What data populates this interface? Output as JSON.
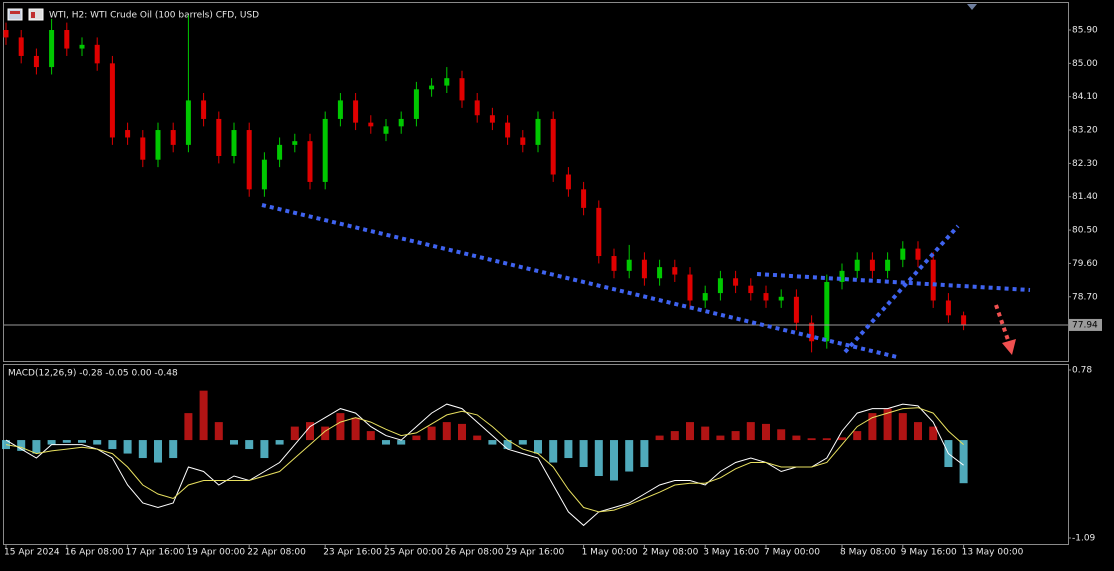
{
  "chart_data": [
    {
      "type": "candlestick",
      "title": "WTI, H2:  WTI Crude Oil (100 barrels) CFD, USD",
      "categories": [
        "15 Apr 2024",
        null,
        null,
        null,
        "16 Apr 08:00",
        null,
        null,
        null,
        "17 Apr 16:00",
        null,
        null,
        null,
        "19 Apr 00:00",
        null,
        null,
        null,
        "22 Apr 08:00",
        null,
        null,
        null,
        null,
        "23 Apr 16:00",
        null,
        null,
        null,
        "25 Apr 00:00",
        null,
        null,
        null,
        "26 Apr 08:00",
        null,
        null,
        null,
        "29 Apr 16:00",
        null,
        null,
        null,
        null,
        "1 May 00:00",
        null,
        null,
        null,
        "2 May 08:00",
        null,
        null,
        null,
        "3 May 16:00",
        null,
        null,
        null,
        "7 May 00:00",
        null,
        null,
        null,
        null,
        "8 May 08:00",
        null,
        null,
        null,
        "9 May 16:00",
        null,
        null,
        null,
        "13 May 00:00"
      ],
      "open": [
        85.9,
        85.7,
        85.2,
        84.9,
        85.9,
        85.4,
        85.5,
        85.0,
        83.2,
        83.0,
        82.4,
        83.2,
        82.8,
        84.0,
        83.5,
        82.5,
        83.2,
        81.6,
        82.4,
        82.8,
        82.9,
        81.8,
        83.5,
        84.0,
        83.4,
        83.1,
        83.3,
        83.5,
        84.3,
        84.4,
        84.6,
        84.0,
        83.6,
        83.4,
        83.0,
        82.8,
        83.5,
        82.0,
        81.6,
        81.1,
        79.8,
        79.4,
        79.7,
        79.2,
        79.5,
        79.3,
        78.6,
        78.8,
        79.2,
        79.0,
        78.8,
        78.6,
        78.7,
        78.0,
        77.5,
        79.1,
        79.4,
        79.7,
        79.4,
        79.7,
        80.0,
        79.7,
        78.6,
        78.2
      ],
      "high": [
        86.1,
        85.9,
        85.4,
        86.2,
        86.1,
        85.7,
        85.7,
        85.2,
        83.4,
        83.2,
        83.4,
        83.4,
        86.3,
        84.2,
        83.7,
        83.4,
        83.4,
        82.6,
        83.0,
        83.1,
        83.1,
        83.7,
        84.2,
        84.2,
        83.6,
        83.5,
        83.7,
        84.5,
        84.6,
        84.9,
        84.8,
        84.2,
        83.8,
        83.6,
        83.2,
        83.7,
        83.7,
        82.2,
        81.8,
        81.3,
        80.0,
        80.1,
        79.9,
        79.7,
        79.7,
        79.5,
        79.0,
        79.4,
        79.4,
        79.2,
        79.0,
        78.9,
        78.9,
        78.2,
        79.3,
        79.6,
        79.9,
        79.9,
        79.9,
        80.2,
        80.2,
        79.9,
        78.8,
        78.3
      ],
      "low": [
        85.5,
        85.0,
        84.7,
        84.7,
        85.2,
        85.2,
        84.8,
        82.8,
        82.8,
        82.2,
        82.2,
        82.6,
        82.6,
        83.3,
        82.3,
        82.3,
        81.4,
        81.4,
        82.2,
        82.6,
        81.6,
        81.6,
        83.3,
        83.2,
        83.1,
        82.9,
        83.1,
        83.3,
        84.1,
        84.2,
        83.8,
        83.4,
        83.2,
        82.8,
        82.6,
        82.6,
        81.8,
        81.4,
        80.9,
        79.6,
        79.2,
        79.2,
        79.0,
        79.0,
        79.1,
        78.4,
        78.4,
        78.6,
        78.8,
        78.6,
        78.4,
        78.4,
        77.8,
        77.2,
        77.3,
        78.9,
        79.2,
        79.2,
        79.2,
        79.5,
        79.5,
        78.4,
        78.0,
        77.8
      ],
      "close": [
        85.7,
        85.2,
        84.9,
        85.9,
        85.4,
        85.5,
        85.0,
        83.0,
        83.0,
        82.4,
        83.2,
        82.8,
        84.0,
        83.5,
        82.5,
        83.2,
        81.6,
        82.4,
        82.8,
        82.9,
        81.8,
        83.5,
        84.0,
        83.4,
        83.3,
        83.3,
        83.5,
        84.3,
        84.4,
        84.6,
        84.0,
        83.6,
        83.4,
        83.0,
        82.8,
        83.5,
        82.0,
        81.6,
        81.1,
        79.8,
        79.4,
        79.7,
        79.2,
        79.5,
        79.3,
        78.6,
        78.8,
        79.2,
        79.0,
        78.8,
        78.6,
        78.7,
        78.0,
        77.5,
        79.1,
        79.4,
        79.7,
        79.4,
        79.7,
        80.0,
        79.7,
        78.6,
        78.2,
        77.94
      ],
      "up_color": "#00c800",
      "down_color": "#e00000",
      "ylim": [
        76.94,
        86.71
      ],
      "yticks": [
        {
          "value": 85.9,
          "label": "85.90"
        },
        {
          "value": 85.0,
          "label": "85.00"
        },
        {
          "value": 84.1,
          "label": "84.10"
        },
        {
          "value": 83.2,
          "label": "83.20"
        },
        {
          "value": 82.3,
          "label": "82.30"
        },
        {
          "value": 81.4,
          "label": "81.40"
        },
        {
          "value": 80.5,
          "label": "80.50"
        },
        {
          "value": 79.6,
          "label": "79.60"
        },
        {
          "value": 78.7,
          "label": "78.70"
        }
      ],
      "current_price": 77.94
    },
    {
      "type": "macd",
      "title": "MACD(12,26,9) -0.28 -0.05 0.00 -0.48",
      "values": [
        -0.1,
        -0.12,
        -0.15,
        -0.05,
        -0.03,
        -0.03,
        -0.05,
        -0.1,
        -0.15,
        -0.2,
        -0.25,
        -0.2,
        0.3,
        0.55,
        0.2,
        -0.05,
        -0.1,
        -0.2,
        -0.05,
        0.15,
        0.2,
        0.15,
        0.3,
        0.25,
        0.1,
        -0.05,
        -0.05,
        0.05,
        0.15,
        0.2,
        0.18,
        0.05,
        -0.05,
        -0.1,
        -0.05,
        -0.15,
        -0.25,
        -0.2,
        -0.3,
        -0.4,
        -0.45,
        -0.35,
        -0.3,
        0.05,
        0.1,
        0.2,
        0.15,
        0.05,
        0.1,
        0.2,
        0.18,
        0.12,
        0.05,
        0.02,
        0.02,
        0.03,
        0.1,
        0.3,
        0.35,
        0.3,
        0.2,
        0.15,
        -0.3,
        -0.48
      ],
      "main": [
        0.0,
        -0.1,
        -0.2,
        -0.05,
        -0.05,
        -0.05,
        -0.1,
        -0.2,
        -0.5,
        -0.7,
        -0.75,
        -0.7,
        -0.3,
        -0.35,
        -0.5,
        -0.4,
        -0.45,
        -0.35,
        -0.25,
        -0.05,
        0.15,
        0.25,
        0.35,
        0.3,
        0.15,
        0.05,
        0.0,
        0.15,
        0.3,
        0.4,
        0.35,
        0.2,
        0.05,
        -0.1,
        -0.15,
        -0.2,
        -0.5,
        -0.8,
        -0.95,
        -0.8,
        -0.75,
        -0.7,
        -0.6,
        -0.5,
        -0.45,
        -0.45,
        -0.5,
        -0.35,
        -0.25,
        -0.2,
        -0.25,
        -0.35,
        -0.3,
        -0.3,
        -0.2,
        0.1,
        0.3,
        0.35,
        0.35,
        0.4,
        0.38,
        0.2,
        -0.15,
        -0.28
      ],
      "signal": [
        -0.05,
        -0.08,
        -0.15,
        -0.12,
        -0.1,
        -0.08,
        -0.1,
        -0.15,
        -0.3,
        -0.5,
        -0.6,
        -0.65,
        -0.5,
        -0.45,
        -0.45,
        -0.45,
        -0.45,
        -0.4,
        -0.35,
        -0.2,
        -0.05,
        0.1,
        0.2,
        0.25,
        0.2,
        0.12,
        0.05,
        0.08,
        0.18,
        0.28,
        0.32,
        0.28,
        0.15,
        0.0,
        -0.1,
        -0.15,
        -0.3,
        -0.55,
        -0.75,
        -0.8,
        -0.78,
        -0.72,
        -0.65,
        -0.58,
        -0.5,
        -0.48,
        -0.48,
        -0.42,
        -0.32,
        -0.25,
        -0.25,
        -0.3,
        -0.3,
        -0.3,
        -0.25,
        -0.05,
        0.15,
        0.25,
        0.3,
        0.35,
        0.36,
        0.3,
        0.1,
        -0.05
      ],
      "positive_color": "#d01818",
      "negative_color": "#5ec8dc",
      "main_color": "#ffffff",
      "signal_color": "#e8e060",
      "ylim": [
        -1.09,
        0.78
      ],
      "yticks": [
        0.78,
        -1.09
      ]
    }
  ]
}
